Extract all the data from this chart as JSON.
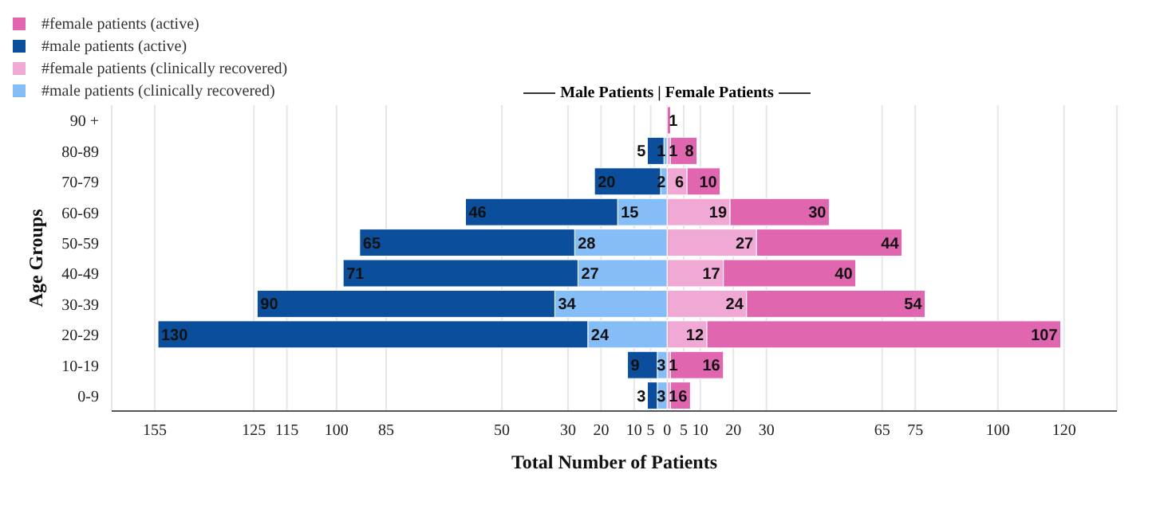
{
  "chart_data": {
    "type": "bar",
    "orientation": "horizontal",
    "title": "Male Patients | Female Patients",
    "xlabel": "Total Number of Patients",
    "ylabel": "Age Groups",
    "categories": [
      "90 +",
      "80-89",
      "70-79",
      "60-69",
      "50-59",
      "40-49",
      "30-39",
      "20-29",
      "10-19",
      "0-9"
    ],
    "series": [
      {
        "name": "#male patients (clinically recovered)",
        "color": "#85bdf7",
        "values": [
          null,
          1,
          2,
          15,
          28,
          27,
          34,
          24,
          3,
          3
        ],
        "base": [
          null,
          -1,
          -2,
          -15,
          -28,
          -27,
          -34,
          -24,
          -3,
          -3
        ]
      },
      {
        "name": "#female patients (clinically recovered)",
        "color": "#f0a8d4",
        "values": [
          null,
          1,
          6,
          19,
          27,
          17,
          24,
          12,
          1,
          1
        ],
        "base": [
          null,
          0,
          0,
          0,
          0,
          0,
          0,
          0,
          0,
          0
        ]
      },
      {
        "name": "#male patients (active)",
        "color": "#0b4f9c",
        "values": [
          null,
          5,
          20,
          46,
          65,
          71,
          90,
          130,
          9,
          3
        ],
        "base": [
          null,
          -6,
          -22,
          -61,
          -93,
          -98,
          -124,
          -154,
          -12,
          -6
        ]
      },
      {
        "name": "#female patients (active)",
        "color": "#e066b0",
        "values": [
          1,
          8,
          10,
          30,
          44,
          40,
          54,
          107,
          16,
          6
        ],
        "base": [
          0,
          1,
          6,
          19,
          27,
          17,
          24,
          12,
          1,
          1
        ]
      }
    ],
    "xlim": [
      -168,
      136
    ],
    "xticks": [
      {
        "value": -155,
        "label": "155"
      },
      {
        "value": -125,
        "label": "125"
      },
      {
        "value": -115,
        "label": "115"
      },
      {
        "value": -100,
        "label": "100"
      },
      {
        "value": -85,
        "label": "85"
      },
      {
        "value": -50,
        "label": "50"
      },
      {
        "value": -30,
        "label": "30"
      },
      {
        "value": -20,
        "label": "20"
      },
      {
        "value": -10,
        "label": "10"
      },
      {
        "value": -5,
        "label": "5"
      },
      0,
      5,
      10,
      20,
      30,
      65,
      75,
      100,
      120
    ],
    "grid": "x",
    "legend": "top left",
    "data_labels": true
  }
}
